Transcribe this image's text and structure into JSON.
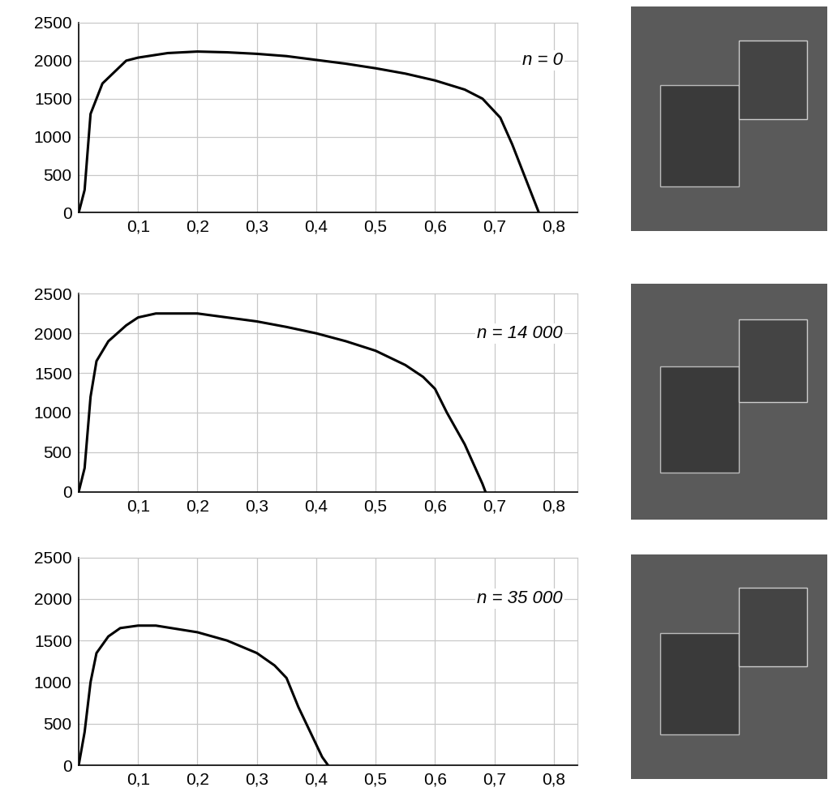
{
  "chart_data": [
    {
      "type": "line",
      "annotation": "n = 0",
      "color": "#000000",
      "grid": true,
      "x": [
        0,
        0.01,
        0.02,
        0.04,
        0.06,
        0.08,
        0.1,
        0.15,
        0.2,
        0.25,
        0.3,
        0.35,
        0.4,
        0.45,
        0.5,
        0.55,
        0.6,
        0.65,
        0.68,
        0.71,
        0.73,
        0.75,
        0.77,
        0.775
      ],
      "values": [
        0,
        300,
        1300,
        1700,
        1850,
        2000,
        2040,
        2100,
        2120,
        2110,
        2090,
        2060,
        2010,
        1960,
        1900,
        1830,
        1740,
        1620,
        1500,
        1250,
        900,
        500,
        100,
        0
      ],
      "xlim": [
        0,
        0.84
      ],
      "ylim": [
        0,
        2500
      ],
      "xticks": [
        {
          "value": 0.1,
          "label": "0,1"
        },
        {
          "value": 0.2,
          "label": "0,2"
        },
        {
          "value": 0.3,
          "label": "0,3"
        },
        {
          "value": 0.4,
          "label": "0,4"
        },
        {
          "value": 0.5,
          "label": "0,5"
        },
        {
          "value": 0.6,
          "label": "0,6"
        },
        {
          "value": 0.7,
          "label": "0,7"
        },
        {
          "value": 0.8,
          "label": "0,8"
        }
      ],
      "yticks": [
        0,
        500,
        1000,
        1500,
        2000,
        2500
      ]
    },
    {
      "type": "line",
      "annotation": "n = 14 000",
      "color": "#000000",
      "grid": true,
      "x": [
        0,
        0.01,
        0.02,
        0.03,
        0.05,
        0.08,
        0.1,
        0.13,
        0.2,
        0.25,
        0.3,
        0.35,
        0.4,
        0.45,
        0.5,
        0.55,
        0.58,
        0.6,
        0.62,
        0.65,
        0.68,
        0.685
      ],
      "values": [
        0,
        300,
        1200,
        1650,
        1900,
        2100,
        2200,
        2250,
        2250,
        2200,
        2150,
        2080,
        2000,
        1900,
        1780,
        1600,
        1450,
        1300,
        1000,
        600,
        100,
        0
      ],
      "xlim": [
        0,
        0.84
      ],
      "ylim": [
        0,
        2500
      ],
      "xticks": [
        {
          "value": 0.1,
          "label": "0,1"
        },
        {
          "value": 0.2,
          "label": "0,2"
        },
        {
          "value": 0.3,
          "label": "0,3"
        },
        {
          "value": 0.4,
          "label": "0,4"
        },
        {
          "value": 0.5,
          "label": "0,5"
        },
        {
          "value": 0.6,
          "label": "0,6"
        },
        {
          "value": 0.7,
          "label": "0,7"
        },
        {
          "value": 0.8,
          "label": "0,8"
        }
      ],
      "yticks": [
        0,
        500,
        1000,
        1500,
        2000,
        2500
      ]
    },
    {
      "type": "line",
      "annotation": "n = 35 000",
      "color": "#000000",
      "grid": true,
      "x": [
        0,
        0.01,
        0.02,
        0.03,
        0.05,
        0.07,
        0.1,
        0.13,
        0.2,
        0.25,
        0.3,
        0.33,
        0.35,
        0.37,
        0.39,
        0.41,
        0.42
      ],
      "values": [
        0,
        400,
        1000,
        1350,
        1550,
        1650,
        1680,
        1680,
        1600,
        1500,
        1350,
        1200,
        1050,
        700,
        400,
        100,
        0
      ],
      "xlim": [
        0,
        0.84
      ],
      "ylim": [
        0,
        2500
      ],
      "xticks": [
        {
          "value": 0.1,
          "label": "0,1"
        },
        {
          "value": 0.2,
          "label": "0,2"
        },
        {
          "value": 0.3,
          "label": "0,3"
        },
        {
          "value": 0.4,
          "label": "0,4"
        },
        {
          "value": 0.5,
          "label": "0,5"
        },
        {
          "value": 0.6,
          "label": "0,6"
        },
        {
          "value": 0.7,
          "label": "0,7"
        },
        {
          "value": 0.8,
          "label": "0,8"
        }
      ],
      "yticks": [
        0,
        500,
        1000,
        1500,
        2000,
        2500
      ]
    }
  ]
}
